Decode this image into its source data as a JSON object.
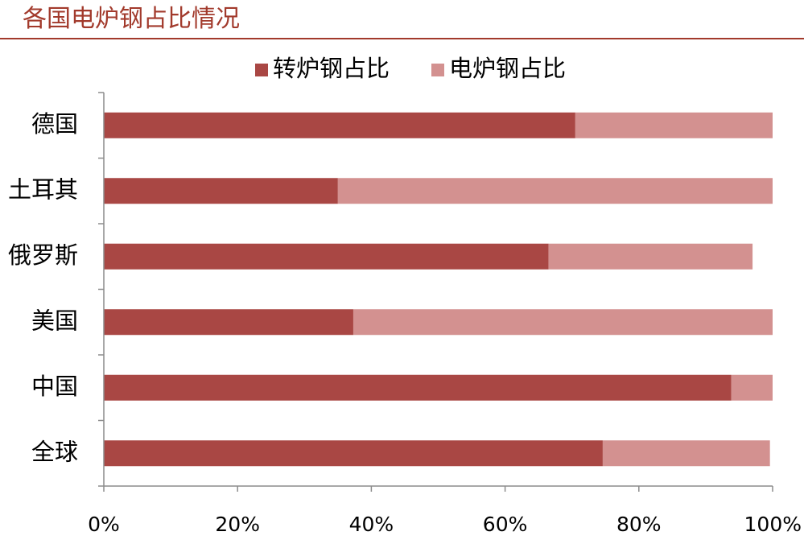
{
  "header": {
    "title": "各国电炉钢占比情况"
  },
  "chart_data": {
    "type": "bar",
    "orientation": "horizontal",
    "stacked": true,
    "categories": [
      "德国",
      "土耳其",
      "俄罗斯",
      "美国",
      "中国",
      "全球"
    ],
    "series": [
      {
        "name": "转炉钢占比",
        "color": "#a94744",
        "values": [
          70.5,
          35,
          66.5,
          37.3,
          93.8,
          74.6
        ]
      },
      {
        "name": "电炉钢占比",
        "color": "#d39190",
        "values": [
          29.5,
          65,
          30.5,
          62.7,
          6.2,
          25
        ]
      }
    ],
    "xlim": [
      0,
      100
    ],
    "xticks": [
      "0%",
      "20%",
      "40%",
      "60%",
      "80%",
      "100%"
    ],
    "xlabel": "",
    "ylabel": "",
    "grid": false,
    "legend": "top"
  }
}
